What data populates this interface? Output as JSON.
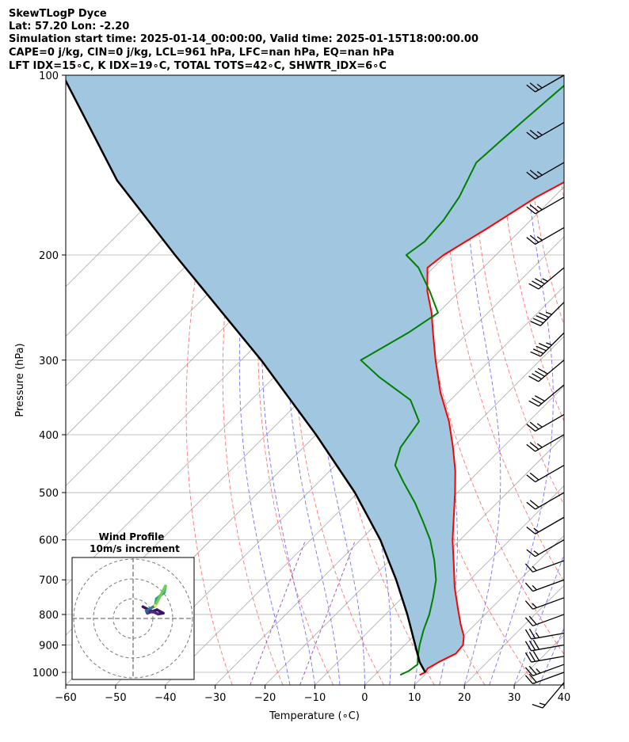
{
  "header": {
    "line1": "SkewTLogP Dyce",
    "line2": "Lat: 57.20   Lon: -2.20",
    "line3": "Simulation start time: 2025-01-14_00:00:00, Valid time: 2025-01-15T18:00:00.00",
    "line4": "CAPE=0 j/kg, CIN=0 j/kg, LCL=961 hPa, LFC=nan hPa, EQ=nan hPa",
    "line5": "LFT IDX=15∘C, K IDX=19∘C, TOTAL TOTS=42∘C, SHWTR_IDX=6∘C"
  },
  "hodograph": {
    "title": "Wind Profile",
    "subtitle": "10m/s increment"
  },
  "colors": {
    "temperature": "#ff0000",
    "dewpoint": "#008000",
    "parcel": "#000000",
    "cape_fill": "#a1c6df",
    "dry_adiabat": "#ff6666",
    "moist_adiabat": "#5b5bf0",
    "mixing_ratio": "#6a6af0",
    "isotherm": "#aaaaaa"
  },
  "chart_data": {
    "type": "line",
    "xlabel": "Temperature (∘C)",
    "ylabel": "Pressure (hPa)",
    "xlim": [
      -60,
      40
    ],
    "ylim": [
      1050,
      100
    ],
    "y_scale": "log",
    "skew": true,
    "grid": true,
    "x_ticks": [
      -60,
      -50,
      -40,
      -30,
      -20,
      -10,
      0,
      10,
      20,
      30,
      40
    ],
    "x_tick_labels": [
      "−60",
      "−50",
      "−40",
      "−30",
      "−20",
      "−10",
      "0",
      "10",
      "20",
      "30",
      "40"
    ],
    "y_ticks": [
      1000,
      900,
      800,
      700,
      600,
      500,
      400,
      300,
      200,
      100
    ],
    "series": [
      {
        "key": "temperature",
        "pressure": [
          1010,
          1000,
          985,
          960,
          930,
          900,
          870,
          830,
          780,
          720,
          660,
          600,
          550,
          500,
          460,
          420,
          380,
          340,
          300,
          270,
          250,
          230,
          210,
          200,
          180,
          160,
          140,
          120,
          110,
          100
        ],
        "values": [
          9.0,
          9.6,
          9.3,
          10.3,
          12.0,
          11.7,
          10.1,
          7.0,
          3.2,
          -1.6,
          -6.3,
          -11.5,
          -15.8,
          -20.5,
          -24.8,
          -30.0,
          -36.0,
          -43.5,
          -51.0,
          -57.0,
          -61.3,
          -66.5,
          -71.2,
          -70.5,
          -67.0,
          -63.5,
          -57.5,
          -49.7,
          -46.5,
          -43.6
        ]
      },
      {
        "key": "dewpoint",
        "pressure": [
          1010,
          995,
          970,
          940,
          900,
          850,
          800,
          750,
          700,
          650,
          600,
          560,
          520,
          480,
          450,
          420,
          380,
          350,
          320,
          300,
          270,
          250,
          230,
          210,
          200,
          190,
          175,
          160,
          140,
          120,
          100
        ],
        "values": [
          5.1,
          6.0,
          6.5,
          4.9,
          3.0,
          0.8,
          -1.2,
          -3.8,
          -6.8,
          -11.0,
          -16.0,
          -21.0,
          -26.5,
          -33.0,
          -38.0,
          -40.5,
          -42.0,
          -48.0,
          -59.0,
          -66.0,
          -62.0,
          -60.0,
          -66.0,
          -73.0,
          -78.0,
          -77.0,
          -77.5,
          -79.0,
          -82.5,
          -81.5,
          -80.0
        ]
      },
      {
        "key": "parcel",
        "pressure": [
          1000,
          961,
          900,
          800,
          700,
          600,
          500,
          400,
          300,
          200,
          150,
          100
        ],
        "values": [
          9.6,
          6.4,
          2.1,
          -5.6,
          -14.8,
          -26.0,
          -40.6,
          -60.0,
          -86.0,
          -124.4,
          -151.0,
          -183.0
        ]
      }
    ],
    "wind_barbs": {
      "pressure": [
        1040,
        1000,
        970,
        940,
        900,
        860,
        800,
        750,
        700,
        650,
        600,
        550,
        500,
        450,
        400,
        370,
        330,
        300,
        270,
        240,
        210,
        180,
        160,
        140,
        120,
        100
      ],
      "speed_kt": [
        15,
        20,
        25,
        30,
        30,
        25,
        20,
        15,
        15,
        15,
        15,
        15,
        20,
        20,
        25,
        25,
        30,
        40,
        45,
        45,
        35,
        25,
        25,
        25,
        25,
        25
      ],
      "direction_deg": [
        220,
        250,
        250,
        260,
        260,
        260,
        250,
        250,
        250,
        250,
        240,
        240,
        240,
        240,
        240,
        240,
        230,
        230,
        225,
        225,
        230,
        240,
        240,
        240,
        240,
        240
      ]
    },
    "hodograph_rings": [
      10,
      20,
      30
    ]
  }
}
